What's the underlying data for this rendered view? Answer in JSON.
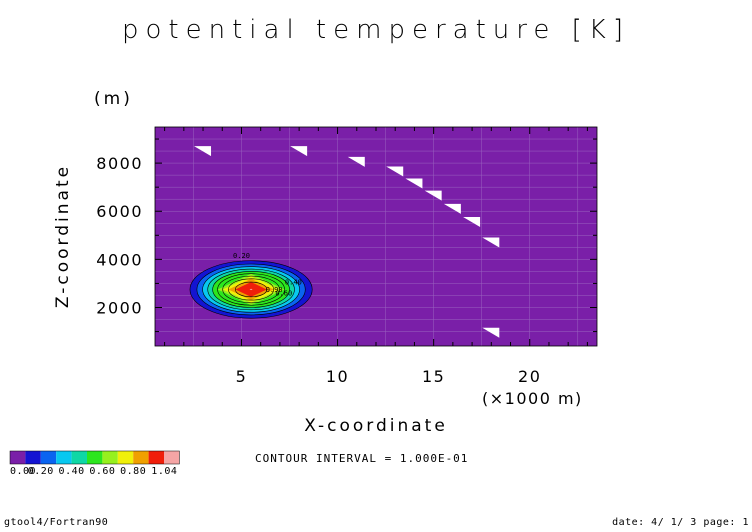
{
  "chart_data": {
    "type": "contour",
    "title": "potential temperature [K]",
    "xlabel": "X-coordinate",
    "ylabel": "Z-coordinate",
    "x_unit": "(×1000 m)",
    "y_unit": "(m)",
    "xlim": [
      0.5,
      23.5
    ],
    "ylim": [
      400,
      9500
    ],
    "x_ticks": [
      5,
      10,
      15,
      20
    ],
    "y_ticks": [
      2000,
      4000,
      6000,
      8000
    ],
    "x_tick_labels": [
      "5",
      "10",
      "15",
      "20"
    ],
    "y_tick_labels": [
      "2000",
      "4000",
      "6000",
      "8000"
    ],
    "contour_interval_text": "CONTOUR INTERVAL = 1.000E-01",
    "colorbar": {
      "levels": [
        0.0,
        0.1,
        0.2,
        0.3,
        0.4,
        0.5,
        0.6,
        0.7,
        0.8,
        0.9,
        1.0,
        1.04
      ],
      "labels": [
        "0.00",
        "0.20",
        "0.40",
        "0.60",
        "0.80",
        "1.04"
      ],
      "colors": [
        "#7a1fa8",
        "#1414d2",
        "#0a64f0",
        "#08c8f0",
        "#0fd7a5",
        "#2ce61e",
        "#96f01e",
        "#f0f00a",
        "#f0a000",
        "#f01e0a",
        "#f5a5a5"
      ]
    },
    "background_color": "#7a1fa8",
    "anomaly": {
      "center": [
        5.5,
        2750
      ],
      "max_value": 1.0,
      "x_half_width": 4.0,
      "z_half_width": 1500
    },
    "contour_labels": [
      {
        "text": "0.20",
        "x": 5.0,
        "z": 4050
      },
      {
        "text": "0.40",
        "x": 7.7,
        "z": 2950
      },
      {
        "text": "0.60",
        "x": 7.2,
        "z": 2500
      },
      {
        "text": "0.90",
        "x": 6.7,
        "z": 2650
      }
    ],
    "wedge_markers": [
      {
        "x": 3.0,
        "z": 8500
      },
      {
        "x": 8.0,
        "z": 8500
      },
      {
        "x": 11.0,
        "z": 8050
      },
      {
        "x": 13.0,
        "z": 7650
      },
      {
        "x": 14.0,
        "z": 7150
      },
      {
        "x": 15.0,
        "z": 6650
      },
      {
        "x": 16.0,
        "z": 6100
      },
      {
        "x": 17.0,
        "z": 5550
      },
      {
        "x": 18.0,
        "z": 4700
      },
      {
        "x": 18.0,
        "z": 950
      }
    ]
  },
  "footer": {
    "left": "gtool4/Fortran90",
    "right": "date: 4/ 1/ 3 page: 1"
  }
}
